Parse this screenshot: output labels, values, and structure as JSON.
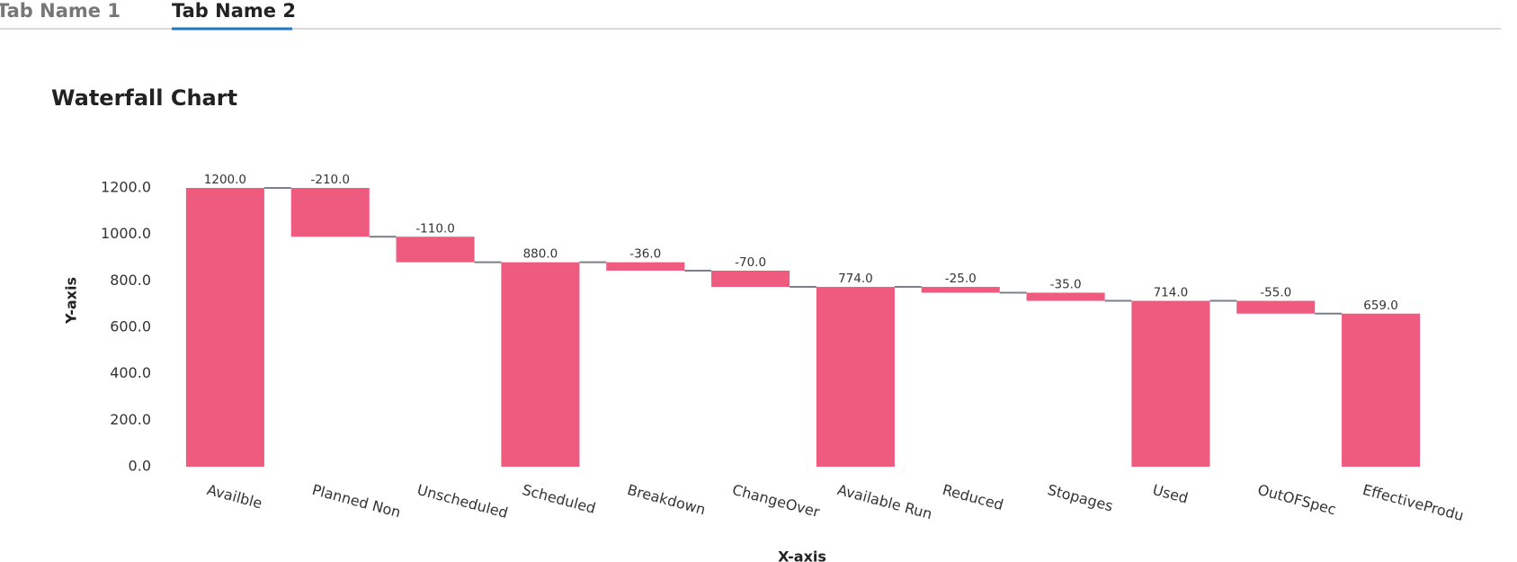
{
  "tabs": [
    "Tab Name 1",
    "Tab Name 2"
  ],
  "chart_data": {
    "type": "waterfall",
    "title": "Waterfall Chart",
    "x_label": "X-axis",
    "y_label": "Y-axis",
    "categories": [
      "Availble",
      "Planned Non",
      "Unscheduled",
      "Scheduled",
      "Breakdown",
      "ChangeOver",
      "Available Run",
      "Reduced",
      "Stopages",
      "Used",
      "OutOFSpec",
      "EffectiveProdu"
    ],
    "values": [
      1200,
      -210,
      -110,
      880,
      -36,
      -70,
      774,
      -25,
      -35,
      714,
      -55,
      659
    ],
    "value_labels": [
      "1200.0",
      "-210.0",
      "-110.0",
      "880.0",
      "-36.0",
      "-70.0",
      "774.0",
      "-25.0",
      "-35.0",
      "714.0",
      "-55.0",
      "659.0"
    ],
    "color": "#ef5b7f",
    "ylim": [
      0,
      1200
    ],
    "yticks": [
      {
        "value": 0,
        "label": "0.0"
      },
      {
        "value": 200,
        "label": "200.0"
      },
      {
        "value": 400,
        "label": "400.0"
      },
      {
        "value": 600,
        "label": "600.0"
      },
      {
        "value": 800,
        "label": "800.0"
      },
      {
        "value": 1000,
        "label": "1000.0"
      },
      {
        "value": 1200,
        "label": "1200.0"
      }
    ],
    "grid": false
  }
}
